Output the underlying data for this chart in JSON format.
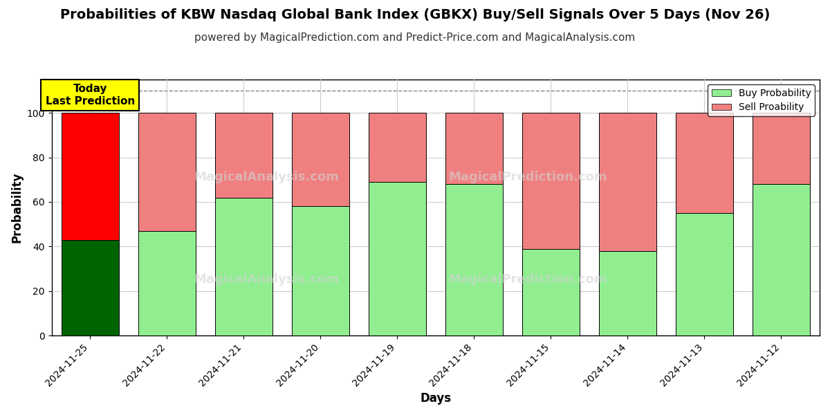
{
  "title": "Probabilities of KBW Nasdaq Global Bank Index (GBKX) Buy/Sell Signals Over 5 Days (Nov 26)",
  "subtitle": "powered by MagicalPrediction.com and Predict-Price.com and MagicalAnalysis.com",
  "xlabel": "Days",
  "ylabel": "Probability",
  "categories": [
    "2024-11-25",
    "2024-11-22",
    "2024-11-21",
    "2024-11-20",
    "2024-11-19",
    "2024-11-18",
    "2024-11-15",
    "2024-11-14",
    "2024-11-13",
    "2024-11-12"
  ],
  "buy_values": [
    43,
    47,
    62,
    58,
    69,
    68,
    39,
    38,
    55,
    68
  ],
  "sell_values": [
    57,
    53,
    38,
    42,
    31,
    32,
    61,
    62,
    45,
    32
  ],
  "today_buy_color": "#006400",
  "today_sell_color": "#FF0000",
  "normal_buy_color": "#90EE90",
  "normal_sell_color": "#F08080",
  "bar_edge_color": "#000000",
  "today_label_bg": "#FFFF00",
  "dashed_line_y": 110,
  "ylim": [
    0,
    115
  ],
  "yticks": [
    0,
    20,
    40,
    60,
    80,
    100
  ],
  "legend_buy_label": "Buy Probability",
  "legend_sell_label": "Sell Proability",
  "figsize": [
    12,
    6
  ],
  "dpi": 100,
  "bg_color": "#FFFFFF",
  "grid_color": "#CCCCCC",
  "title_fontsize": 14,
  "subtitle_fontsize": 11
}
